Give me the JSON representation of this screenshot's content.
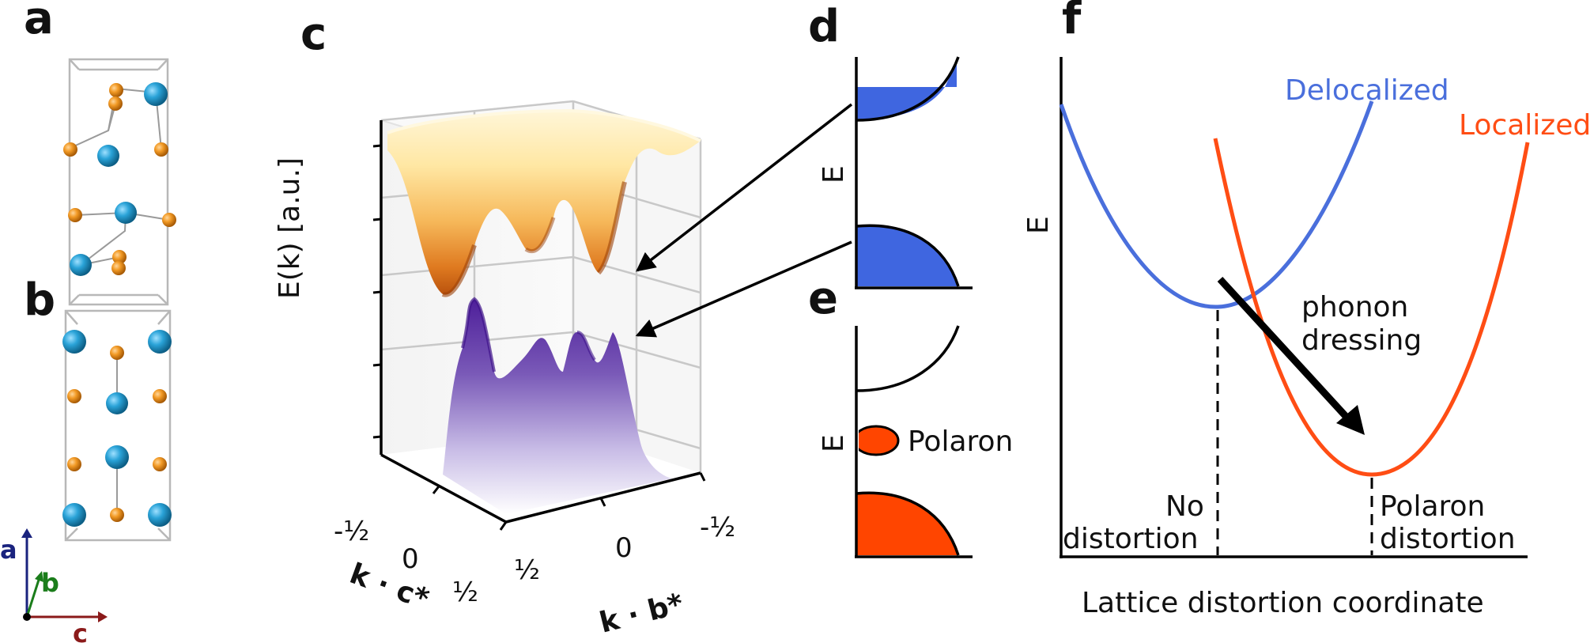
{
  "panels": {
    "a": "a",
    "b": "b",
    "c": "c",
    "d": "d",
    "e": "e",
    "f": "f"
  },
  "crystal_axes": {
    "a": "a",
    "b": "b",
    "c": "c",
    "colors": {
      "a": "#1a237e",
      "b": "#1b7d1b",
      "c": "#8b1a1a"
    }
  },
  "panel_c": {
    "zlabel": "E(k) [a.u.]",
    "xlabel": "k · c*",
    "ylabel": "k · b*",
    "x_ticks": [
      "-½",
      "0",
      "½"
    ],
    "y_ticks": [
      "½",
      "0",
      "-½"
    ],
    "colors": {
      "upper_band": "#e0701c",
      "lower_band": "#5a2ca0"
    }
  },
  "panel_d": {
    "ylabel": "E",
    "fill_color": "#3f66e0"
  },
  "panel_e": {
    "ylabel": "E",
    "polaron_label": "Polaron",
    "fill_color": "#ff4500"
  },
  "panel_f": {
    "ylabel": "E",
    "xlabel": "Lattice distortion coordinate",
    "delocalized_label": "Delocalized",
    "localized_label": "Localized",
    "arrow_label_1": "phonon",
    "arrow_label_2": "dressing",
    "no_distortion_1": "No",
    "no_distortion_2": "distortion",
    "polaron_distortion_1": "Polaron",
    "polaron_distortion_2": "distortion",
    "colors": {
      "delocalized": "#4a6fdc",
      "localized": "#ff4d14"
    }
  }
}
